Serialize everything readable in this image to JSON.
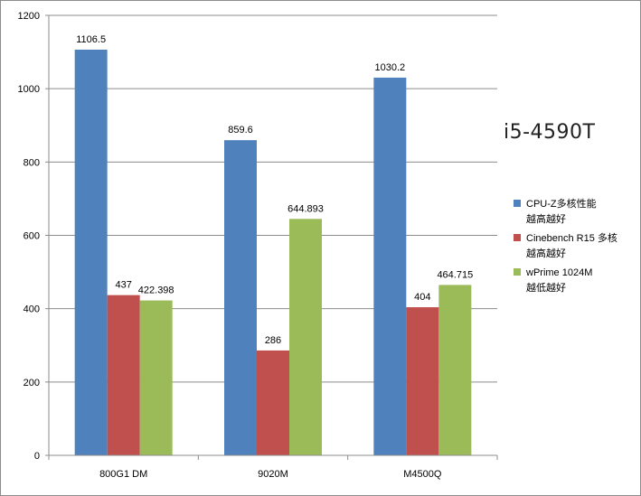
{
  "chart_data": {
    "type": "bar",
    "title": "",
    "xlabel": "",
    "ylabel": "",
    "categories": [
      "800G1 DM",
      "9020M",
      "M4500Q"
    ],
    "ylim": [
      0,
      1200
    ],
    "yticks": [
      0,
      200,
      400,
      600,
      800,
      1000,
      1200
    ],
    "grid": true,
    "legend_position": "right",
    "series": [
      {
        "name": "CPU-Z多核性能越高越好",
        "legend_lines": [
          "CPU-Z多核性能",
          "越高越好"
        ],
        "color": "#4f81bd",
        "values": [
          1106.5,
          859.6,
          1030.2
        ],
        "labels": [
          "1106.5",
          "859.6",
          "1030.2"
        ]
      },
      {
        "name": "Cinebench R15 多核越高越好",
        "legend_lines": [
          "Cinebench R15 多核",
          "越高越好"
        ],
        "color": "#c0504d",
        "values": [
          437,
          286,
          404
        ],
        "labels": [
          "437",
          "286",
          "404"
        ]
      },
      {
        "name": "wPrime 1024M越低越好",
        "legend_lines": [
          "wPrime 1024M",
          "越低越好"
        ],
        "color": "#9bbb59",
        "values": [
          422.398,
          644.893,
          464.715
        ],
        "labels": [
          "422.398",
          "644.893",
          "464.715"
        ]
      }
    ],
    "annotations": [
      {
        "text": "i5-4590T"
      }
    ]
  }
}
